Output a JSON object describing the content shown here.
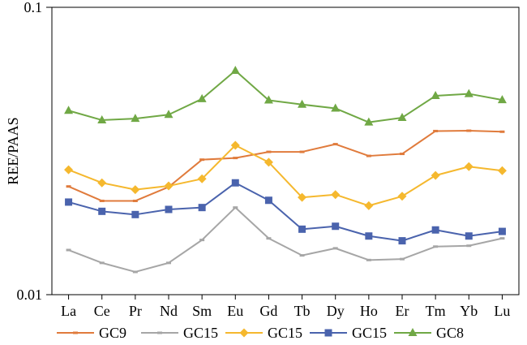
{
  "chart_data": {
    "type": "line",
    "title": "",
    "xlabel": "",
    "ylabel": "REE/PAAS",
    "yscale": "log",
    "ylim": [
      0.01,
      0.1
    ],
    "yticks": [
      "0.1",
      "0.01"
    ],
    "grid": false,
    "legend_position": "bottom",
    "categories": [
      "La",
      "Ce",
      "Pr",
      "Nd",
      "Sm",
      "Eu",
      "Gd",
      "Tb",
      "Dy",
      "Ho",
      "Er",
      "Tm",
      "Yb",
      "Lu"
    ],
    "series": [
      {
        "name": "GC9",
        "color": "#e07b3c",
        "marker": "dash",
        "values": [
          0.0238,
          0.0212,
          0.0212,
          0.0237,
          0.0295,
          0.0299,
          0.0314,
          0.0314,
          0.0334,
          0.0304,
          0.0309,
          0.0371,
          0.0372,
          0.0369
        ]
      },
      {
        "name": "GC15",
        "color": "#a6a6a6",
        "marker": "dash",
        "values": [
          0.0143,
          0.0129,
          0.012,
          0.0129,
          0.0155,
          0.0201,
          0.0157,
          0.0137,
          0.0145,
          0.0132,
          0.0133,
          0.0147,
          0.0148,
          0.0157
        ]
      },
      {
        "name": "GC15",
        "color": "#f5b82e",
        "marker": "diamond",
        "values": [
          0.0272,
          0.0245,
          0.0232,
          0.0239,
          0.0253,
          0.0331,
          0.0289,
          0.0218,
          0.0223,
          0.0204,
          0.022,
          0.026,
          0.0279,
          0.027
        ]
      },
      {
        "name": "GC15",
        "color": "#4a63ad",
        "marker": "square",
        "values": [
          0.021,
          0.0195,
          0.019,
          0.0198,
          0.0201,
          0.0245,
          0.0213,
          0.0169,
          0.0173,
          0.016,
          0.0154,
          0.0168,
          0.016,
          0.0166
        ]
      },
      {
        "name": "GC8",
        "color": "#70a845",
        "marker": "triangle",
        "values": [
          0.0437,
          0.0405,
          0.041,
          0.0423,
          0.048,
          0.0602,
          0.0475,
          0.0459,
          0.0445,
          0.0398,
          0.0413,
          0.0492,
          0.05,
          0.0476
        ]
      }
    ]
  }
}
